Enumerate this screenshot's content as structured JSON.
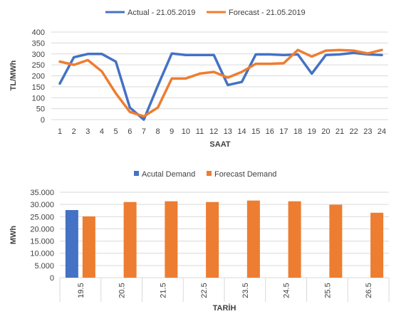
{
  "colors": {
    "blue": "#4472c4",
    "orange": "#ed7d31",
    "grid": "#d9d9d9",
    "text": "#404040"
  },
  "chart_data": [
    {
      "type": "line",
      "xlabel": "SAAT",
      "ylabel": "TL/MWh",
      "ylim": [
        0,
        400
      ],
      "ytick_step": 50,
      "grid": true,
      "legend_position": "top",
      "x": [
        "1",
        "2",
        "3",
        "4",
        "5",
        "6",
        "7",
        "8",
        "9",
        "10",
        "11",
        "12",
        "13",
        "14",
        "15",
        "16",
        "17",
        "18",
        "19",
        "20",
        "21",
        "22",
        "23",
        "24"
      ],
      "series": [
        {
          "name": "Actual - 21.05.2019",
          "color": "#4472c4",
          "values": [
            165,
            285,
            300,
            300,
            265,
            55,
            0,
            155,
            302,
            295,
            295,
            295,
            158,
            172,
            298,
            298,
            295,
            298,
            210,
            295,
            298,
            305,
            298,
            295
          ]
        },
        {
          "name": "Forecast - 21.05.2019",
          "color": "#ed7d31",
          "values": [
            265,
            250,
            272,
            220,
            120,
            35,
            15,
            55,
            188,
            188,
            210,
            218,
            192,
            218,
            255,
            255,
            258,
            318,
            288,
            315,
            318,
            315,
            302,
            318
          ]
        }
      ]
    },
    {
      "type": "bar",
      "xlabel": "TARİH",
      "ylabel": "MWh",
      "ylim": [
        0,
        35000
      ],
      "ytick_labels": [
        "0",
        "5.000",
        "10.000",
        "15.000",
        "20.000",
        "25.000",
        "30.000",
        "35.000"
      ],
      "grid": true,
      "legend_position": "top",
      "categories": [
        "19.5",
        "20.5",
        "21.5",
        "22.5",
        "23.5",
        "24.5",
        "25.5",
        "26.5"
      ],
      "series": [
        {
          "name": "Acutal Demand",
          "color": "#4472c4",
          "values": [
            27700,
            null,
            null,
            null,
            null,
            null,
            null,
            null
          ]
        },
        {
          "name": "Forecast Demand",
          "color": "#ed7d31",
          "values": [
            25100,
            31000,
            31300,
            31000,
            31600,
            31300,
            29900,
            26600
          ]
        }
      ]
    }
  ]
}
